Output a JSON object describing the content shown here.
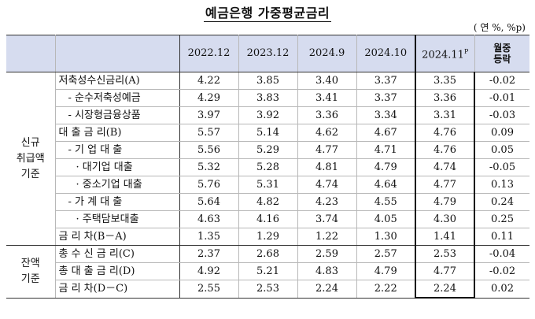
{
  "title": "예금은행 가중평균금리",
  "unit": "( 연 %, %p)",
  "columns": [
    "2022.12",
    "2023.12",
    "2024.9",
    "2024.10",
    "2024.11"
  ],
  "highlight_sup": "P",
  "change_header": [
    "월중",
    "등락"
  ],
  "groups": [
    {
      "label": [
        "신규",
        "취급액",
        "기준"
      ]
    },
    {
      "label": [
        "잔액",
        "기준"
      ]
    }
  ],
  "rows": [
    {
      "label": "저축성수신금리(A)",
      "values": [
        "4.22",
        "3.85",
        "3.40",
        "3.37",
        "3.35"
      ],
      "change": "-0.02"
    },
    {
      "label": "- 순수저축성예금",
      "values": [
        "4.29",
        "3.83",
        "3.41",
        "3.37",
        "3.36"
      ],
      "change": "-0.01"
    },
    {
      "label": "- 시장형금융상품",
      "values": [
        "3.97",
        "3.92",
        "3.36",
        "3.34",
        "3.31"
      ],
      "change": "-0.03"
    },
    {
      "label": "대 출 금 리(B)",
      "values": [
        "5.57",
        "5.14",
        "4.62",
        "4.67",
        "4.76"
      ],
      "change": "0.09"
    },
    {
      "label": "- 기 업 대 출",
      "values": [
        "5.56",
        "5.29",
        "4.77",
        "4.71",
        "4.76"
      ],
      "change": "0.05"
    },
    {
      "label": "· 대기업 대출",
      "values": [
        "5.32",
        "5.28",
        "4.81",
        "4.79",
        "4.74"
      ],
      "change": "-0.05"
    },
    {
      "label": "· 중소기업 대출",
      "values": [
        "5.76",
        "5.31",
        "4.74",
        "4.64",
        "4.77"
      ],
      "change": "0.13"
    },
    {
      "label": "- 가 계 대 출",
      "values": [
        "5.64",
        "4.82",
        "4.23",
        "4.55",
        "4.79"
      ],
      "change": "0.24"
    },
    {
      "label": "· 주택담보대출",
      "values": [
        "4.63",
        "4.16",
        "3.74",
        "4.05",
        "4.30"
      ],
      "change": "0.25"
    },
    {
      "label": "금 리 차(B－A)",
      "values": [
        "1.35",
        "1.29",
        "1.22",
        "1.30",
        "1.41"
      ],
      "change": "0.11"
    },
    {
      "label": "총 수 신 금 리(C)",
      "values": [
        "2.37",
        "2.68",
        "2.59",
        "2.57",
        "2.53"
      ],
      "change": "-0.04"
    },
    {
      "label": "총 대 출 금 리(D)",
      "values": [
        "4.92",
        "5.21",
        "4.83",
        "4.79",
        "4.77"
      ],
      "change": "-0.02"
    },
    {
      "label": "금 리 차(D－C)",
      "values": [
        "2.55",
        "2.53",
        "2.24",
        "2.22",
        "2.24"
      ],
      "change": "0.02"
    }
  ]
}
